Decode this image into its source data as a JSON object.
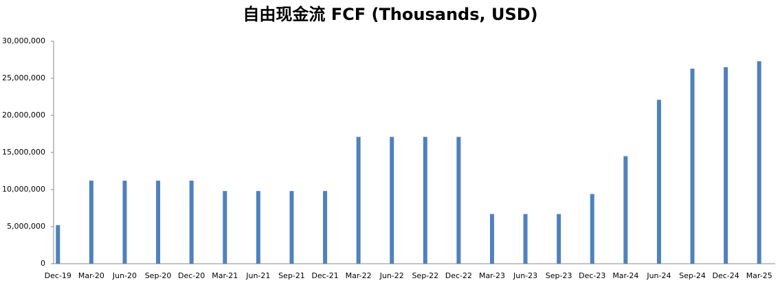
{
  "chart_data": {
    "type": "bar",
    "title": "自由现金流 FCF (Thousands, USD)",
    "categories": [
      "Dec-19",
      "Mar-20",
      "Jun-20",
      "Sep-20",
      "Dec-20",
      "Mar-21",
      "Jun-21",
      "Sep-21",
      "Dec-21",
      "Mar-22",
      "Jun-22",
      "Sep-22",
      "Dec-22",
      "Mar-23",
      "Jun-23",
      "Sep-23",
      "Dec-23",
      "Mar-24",
      "Jun-24",
      "Sep-24",
      "Dec-24",
      "Mar-25"
    ],
    "values": [
      5200000,
      11200000,
      11200000,
      11200000,
      11200000,
      9800000,
      9800000,
      9800000,
      9800000,
      17100000,
      17100000,
      17100000,
      17100000,
      6700000,
      6700000,
      6700000,
      9400000,
      14500000,
      22100000,
      26300000,
      26500000,
      27300000
    ],
    "color": "#4f81bd",
    "ylim": [
      0,
      30000000
    ],
    "yticks": [
      0,
      {
        "value": 5000000,
        "label": "5,000,000"
      },
      {
        "value": 10000000,
        "label": "10,000,000"
      },
      {
        "value": 15000000,
        "label": "15,000,000"
      },
      {
        "value": 20000000,
        "label": "20,000,000"
      },
      {
        "value": 25000000,
        "label": "25,000,000"
      },
      {
        "value": 30000000,
        "label": "30,000,000"
      }
    ],
    "grid": false
  }
}
